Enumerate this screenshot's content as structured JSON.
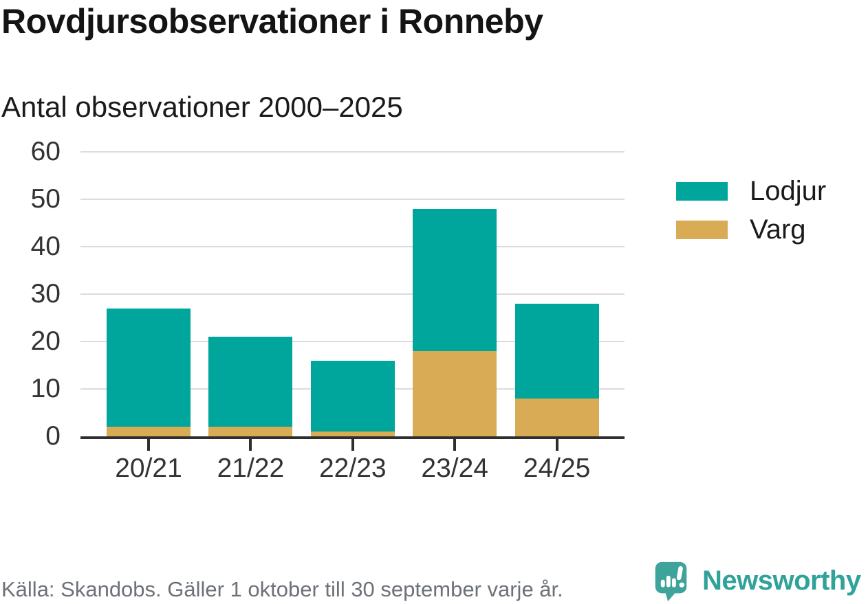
{
  "header": {
    "title": "Rovdjursobservationer i Ronneby",
    "subtitle": "Antal observationer 2000–2025"
  },
  "chart_data": {
    "type": "bar",
    "stacked": true,
    "title": "Rovdjursobservationer i Ronneby",
    "subtitle": "Antal observationer 2000–2025",
    "categories": [
      "20/21",
      "21/22",
      "22/23",
      "23/24",
      "24/25"
    ],
    "series": [
      {
        "name": "Varg",
        "color": "#d9ab55",
        "values": [
          2,
          2,
          1,
          18,
          8
        ]
      },
      {
        "name": "Lodjur",
        "color": "#00a69c",
        "values": [
          25,
          19,
          15,
          30,
          20
        ]
      }
    ],
    "totals": [
      27,
      21,
      16,
      48,
      28
    ],
    "xlabel": "",
    "ylabel": "Antal observationer",
    "ylim": [
      0,
      60
    ],
    "y_ticks": [
      0,
      10,
      20,
      30,
      40,
      50,
      60
    ],
    "grid": true,
    "legend_position": "right",
    "legend_order": [
      "Lodjur",
      "Varg"
    ]
  },
  "legend": {
    "items": [
      {
        "label": "Lodjur",
        "color": "#00a69c"
      },
      {
        "label": "Varg",
        "color": "#d9ab55"
      }
    ]
  },
  "colors": {
    "lodjur": "#00a69c",
    "varg": "#d9ab55",
    "gridline": "#dcdcdc",
    "axis": "#2e2e2e",
    "text": "#333333",
    "source_text": "#6d7178",
    "brand_teal": "#2fa29a",
    "brand_icon_teal": "#3da39b"
  },
  "footer": {
    "source": "Källa: Skandobs. Gäller 1 oktober till 30 september varje år.",
    "brand": "Newsworthy"
  }
}
